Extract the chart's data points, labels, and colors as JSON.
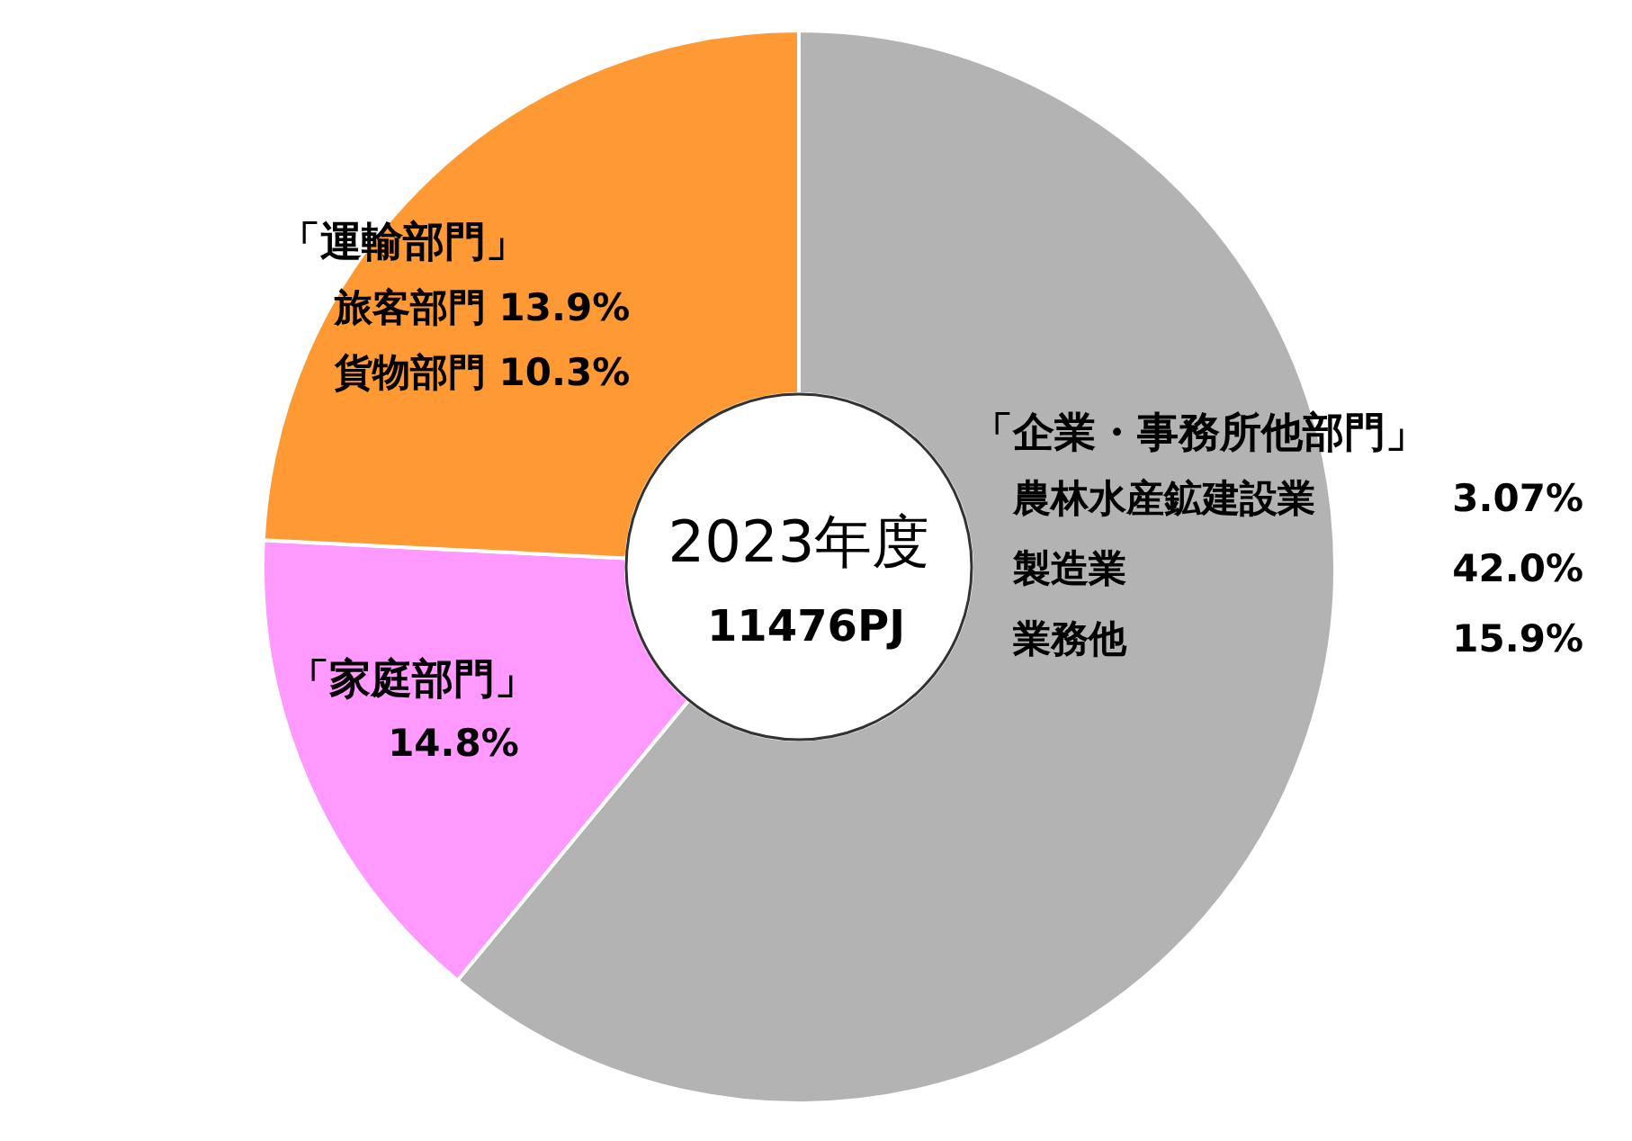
{
  "chart_data": {
    "type": "donut",
    "title": "2023年度",
    "subtitle": "11476PJ",
    "categories": [
      "「企業・事務所他部門」",
      "「家庭部門」",
      "「運輸部門」"
    ],
    "values": [
      60.97,
      14.8,
      24.2
    ],
    "colors": [
      "#b3b3b3",
      "#ff99ff",
      "#ff9933"
    ],
    "value_labels": [
      null,
      "14.8%",
      null
    ],
    "annotations": [
      "農林水産鉱建設業 3.07%",
      "製造業 42.0%",
      "業務他 15.9%",
      "旅客部門 13.9%",
      "貨物部門 10.3%"
    ]
  }
}
